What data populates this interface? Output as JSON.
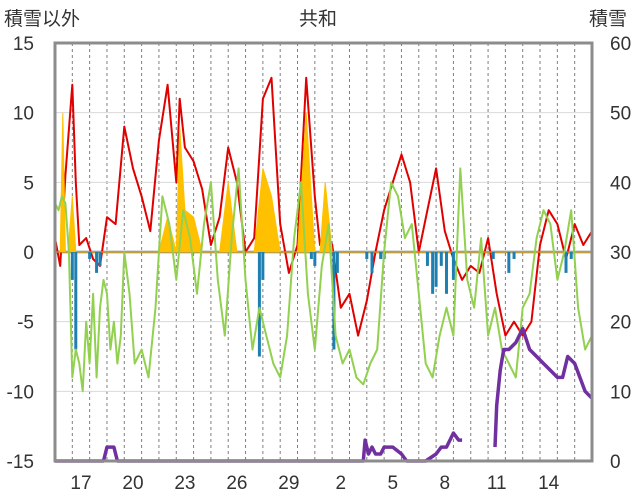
{
  "chart_data": {
    "type": "line",
    "title": "共和",
    "left_axis_title": "積雪以外",
    "right_axis_title": "積雪",
    "y_left": {
      "min": -15,
      "max": 15,
      "ticks": [
        15,
        10,
        5,
        0,
        -5,
        -10,
        -15
      ],
      "labels": [
        "15",
        "10",
        "5",
        "0",
        "-5",
        "-10",
        "-15"
      ]
    },
    "y_right": {
      "min": 0,
      "max": 60,
      "ticks": [
        60,
        50,
        40,
        30,
        20,
        10,
        0
      ],
      "labels": [
        "60",
        "50",
        "40",
        "30",
        "20",
        "10",
        "0"
      ]
    },
    "x": {
      "min": 0,
      "max": 31,
      "tick_positions": [
        1.5,
        4.5,
        7.5,
        10.5,
        13.5,
        16.5,
        19.5,
        22.5,
        25.5,
        28.5
      ],
      "tick_labels": [
        "17",
        "20",
        "23",
        "26",
        "29",
        "2",
        "5",
        "8",
        "11",
        "14"
      ],
      "day_gridlines": 30
    },
    "grid": "vertical dashed daily gridlines, horizontal gridlines at major ticks",
    "series": [
      {
        "color": "#e00000",
        "axis": "left",
        "style": "line",
        "x": [
          0,
          0.3,
          0.6,
          1.0,
          1.2,
          1.4,
          1.8,
          2.2,
          2.6,
          3.0,
          3.5,
          4.0,
          4.5,
          5.0,
          5.5,
          6.0,
          6.5,
          7.0,
          7.2,
          7.5,
          8.0,
          8.5,
          9.0,
          9.5,
          10.0,
          10.5,
          11.0,
          11.5,
          12.0,
          12.5,
          13.0,
          13.5,
          14.0,
          14.5,
          15.0,
          15.3,
          15.6,
          16.0,
          16.5,
          17.0,
          17.5,
          18.0,
          18.5,
          19.0,
          19.5,
          20.0,
          20.5,
          21.0,
          21.5,
          22.0,
          22.5,
          23.0,
          23.5,
          24.0,
          24.5,
          25.0,
          25.5,
          26.0,
          26.5,
          27.0,
          27.5,
          28.0,
          28.5,
          29.0,
          29.5,
          30.0,
          30.5,
          31.0
        ],
        "y": [
          1.0,
          -1.0,
          5.5,
          12.0,
          5.0,
          0.5,
          1.0,
          -0.5,
          -1.0,
          2.5,
          2.0,
          9.0,
          6.0,
          4.0,
          1.5,
          8.0,
          12.0,
          5.0,
          11.0,
          7.5,
          6.5,
          4.5,
          0.5,
          2.5,
          7.5,
          5.0,
          0.0,
          1.0,
          11.0,
          12.5,
          2.0,
          -1.5,
          0.5,
          12.5,
          4.0,
          0.5,
          1.5,
          0.5,
          -4.0,
          -3.0,
          -6.0,
          -3.5,
          0.0,
          3.0,
          5.0,
          7.0,
          5.0,
          0.0,
          3.0,
          6.0,
          1.5,
          -0.5,
          -2.0,
          -1.0,
          -1.5,
          1.0,
          -3.0,
          -6.0,
          -5.0,
          -6.0,
          -5.0,
          0.5,
          3.0,
          2.0,
          -0.5,
          2.0,
          0.5,
          1.5
        ]
      },
      {
        "color": "#ffc000",
        "axis": "left",
        "style": "area",
        "x": [
          0,
          0.3,
          0.45,
          0.6,
          0.75,
          1.0,
          1.2,
          1.4,
          2.5,
          3.0,
          3.5,
          4.0,
          4.5,
          5.0,
          5.5,
          6.0,
          6.5,
          7.0,
          7.2,
          7.5,
          8.0,
          8.5,
          9.0,
          9.5,
          10.0,
          10.5,
          11.0,
          11.5,
          12.0,
          12.5,
          13.0,
          13.5,
          14.0,
          14.5,
          15.0,
          15.3,
          15.6,
          16.0,
          31.0
        ],
        "y": [
          0,
          0,
          10.0,
          0,
          0,
          4.0,
          0,
          0,
          0,
          0,
          0,
          0,
          0,
          0,
          0,
          0,
          2.5,
          0,
          9.0,
          3.0,
          2.5,
          0,
          0,
          0,
          5.0,
          0,
          0,
          0,
          6.0,
          4.0,
          0,
          0,
          0,
          10.0,
          0,
          0,
          5.0,
          0,
          0
        ]
      },
      {
        "color": "#1f7fb0",
        "axis": "left",
        "style": "bars",
        "x": [
          1.0,
          1.2,
          2.0,
          2.4,
          2.6,
          11.8,
          12.0,
          14.8,
          15.0,
          16.1,
          16.3,
          18.0,
          18.3,
          18.8,
          19.0,
          21.5,
          21.8,
          22.0,
          22.3,
          22.6,
          23.0,
          25.3,
          26.2,
          26.5,
          29.5,
          29.8
        ],
        "y": [
          -2.0,
          -7.0,
          -0.5,
          -1.5,
          -1.0,
          -7.5,
          -2.0,
          -0.5,
          -1.0,
          -7.0,
          -1.5,
          -0.5,
          -1.5,
          -0.5,
          -0.5,
          -1.0,
          -3.0,
          -2.5,
          -1.0,
          -3.0,
          -2.0,
          -0.5,
          -1.5,
          -0.5,
          -1.5,
          -0.5
        ]
      },
      {
        "color": "#92d050",
        "axis": "left",
        "style": "line",
        "x": [
          0,
          0.2,
          0.4,
          0.6,
          0.8,
          1.0,
          1.2,
          1.4,
          1.6,
          1.8,
          2.0,
          2.2,
          2.4,
          2.6,
          2.8,
          3.0,
          3.2,
          3.4,
          3.6,
          3.8,
          4.0,
          4.3,
          4.6,
          5.0,
          5.4,
          5.8,
          6.2,
          6.6,
          7.0,
          7.4,
          7.8,
          8.2,
          8.6,
          9.0,
          9.4,
          9.8,
          10.2,
          10.6,
          11.0,
          11.4,
          11.8,
          12.2,
          12.6,
          13.0,
          13.4,
          13.8,
          14.2,
          14.6,
          15.0,
          15.4,
          15.8,
          16.2,
          16.6,
          17.0,
          17.4,
          17.8,
          18.2,
          18.6,
          19.0,
          19.4,
          19.8,
          20.2,
          20.6,
          21.0,
          21.4,
          21.8,
          22.2,
          22.6,
          23.0,
          23.4,
          23.8,
          24.2,
          24.6,
          25.0,
          25.4,
          25.8,
          26.2,
          26.6,
          27.0,
          27.4,
          27.8,
          28.2,
          28.6,
          29.0,
          29.4,
          29.8,
          30.2,
          30.6,
          31.0
        ],
        "y": [
          3.5,
          3.0,
          4.0,
          3.5,
          0.0,
          -9.0,
          -7.0,
          -8.0,
          -10.0,
          -5.0,
          -8.0,
          -3.0,
          -9.0,
          -4.0,
          -2.0,
          -3.0,
          -7.0,
          -5.0,
          -8.0,
          -6.0,
          0.0,
          -3.0,
          -8.0,
          -7.0,
          -9.0,
          -4.0,
          4.0,
          2.0,
          -2.0,
          3.0,
          1.0,
          -3.0,
          2.0,
          5.0,
          -2.0,
          -6.0,
          1.0,
          6.0,
          -2.0,
          -7.0,
          -4.0,
          -6.0,
          -8.0,
          -9.0,
          -6.0,
          1.0,
          5.0,
          -3.0,
          -7.0,
          -1.0,
          2.0,
          -6.0,
          -8.0,
          -7.0,
          -9.0,
          -9.5,
          -8.0,
          -7.0,
          0.0,
          5.0,
          4.0,
          1.0,
          2.0,
          -3.0,
          -8.0,
          -9.0,
          -6.0,
          -4.0,
          -6.0,
          6.0,
          -2.0,
          -4.0,
          1.0,
          -6.0,
          -4.0,
          -7.0,
          -8.0,
          -9.0,
          -4.0,
          -3.0,
          1.0,
          3.0,
          2.0,
          -2.0,
          0.0,
          3.0,
          -4.0,
          -7.0,
          -6.0
        ]
      },
      {
        "color": "#7030a0",
        "axis": "right",
        "style": "line",
        "x": [
          0,
          2.8,
          3.0,
          3.4,
          3.6,
          17.8,
          17.9,
          18.1,
          18.3,
          18.5,
          18.8,
          19.0,
          19.5,
          20.0,
          20.3,
          21.0,
          21.4,
          22.0,
          22.3,
          22.6,
          23.0,
          23.3,
          23.5,
          null,
          25.4,
          25.5,
          25.7,
          25.9,
          26.2,
          26.6,
          27.0,
          27.4,
          27.8,
          28.2,
          28.6,
          29.0,
          29.3,
          29.6,
          30.0,
          30.3,
          30.6,
          31.0
        ],
        "y": [
          0,
          0,
          2,
          2,
          0,
          0,
          3,
          1,
          2,
          1,
          1,
          2,
          2,
          1,
          0,
          0,
          0,
          1,
          2,
          2,
          4,
          3,
          3,
          null,
          2,
          8,
          13,
          16,
          16,
          17,
          19,
          16,
          15,
          14,
          13,
          12,
          12,
          15,
          14,
          12,
          10,
          9
        ]
      }
    ]
  }
}
